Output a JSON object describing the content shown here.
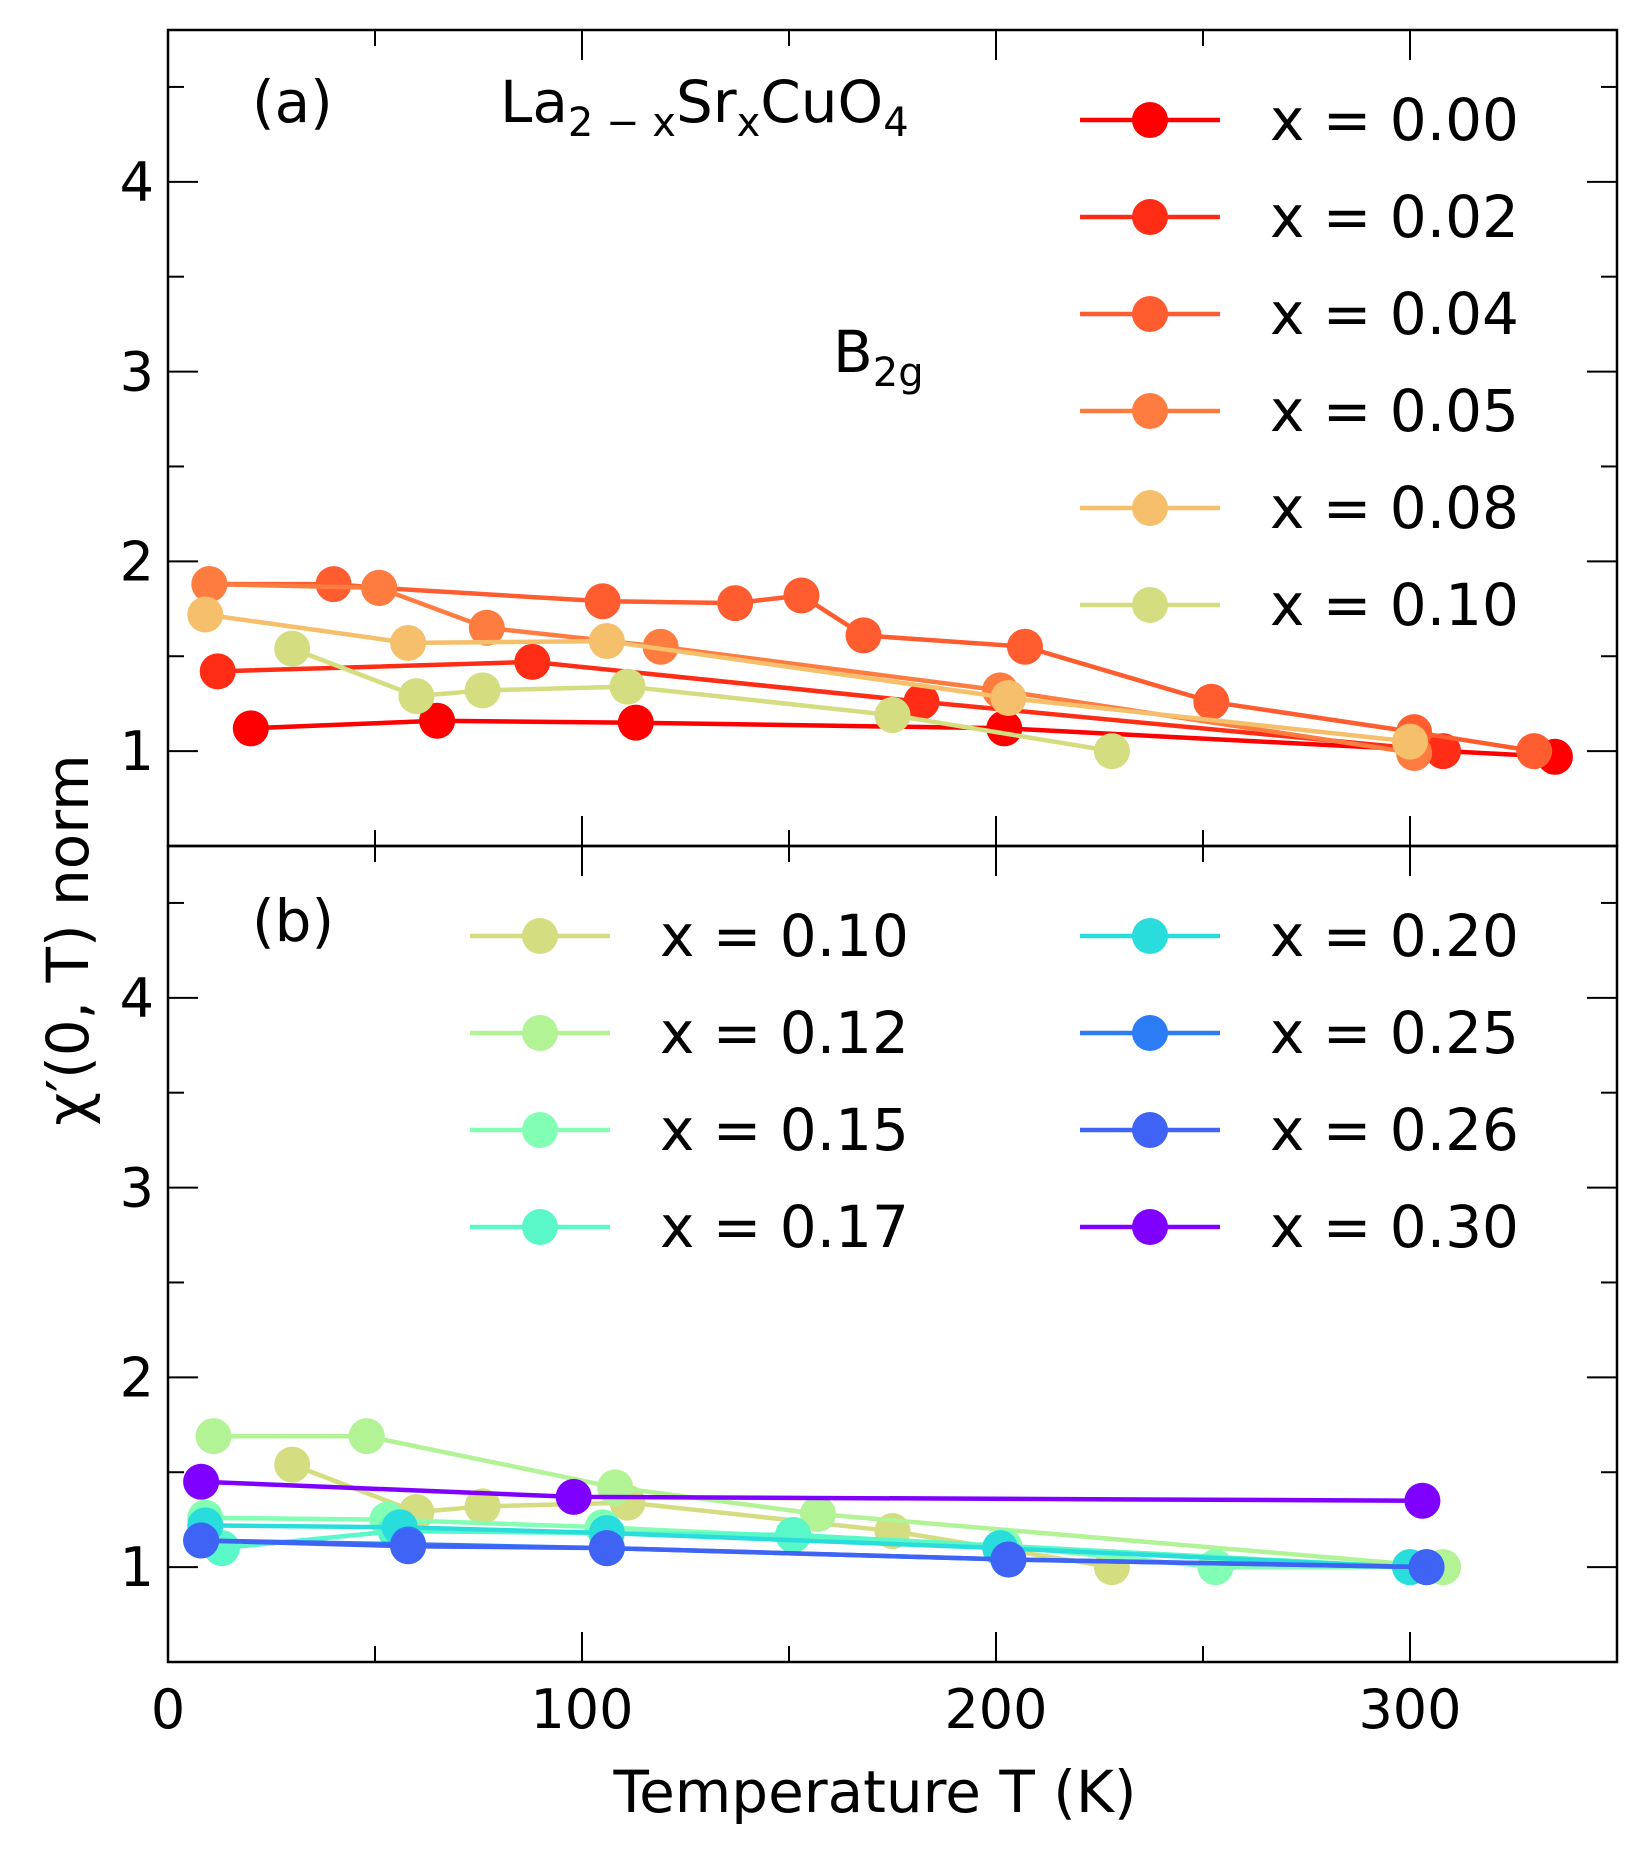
{
  "figure": {
    "ylabel": "χ′(0, T) norm",
    "xlabel": "Temperature T (K)"
  },
  "chart_data": [
    {
      "type": "line",
      "panel": "(a)",
      "title": "La2−xSrxCuO4",
      "formula": {
        "base": "La",
        "sub1": "2 − x",
        "mid": "Sr",
        "sub2": "x",
        "tail": "CuO",
        "sub3": "4"
      },
      "annotation": {
        "base": "B",
        "sub": "2g"
      },
      "xlim": [
        0,
        350
      ],
      "ylim": [
        0.5,
        4.8
      ],
      "xticks": [
        0,
        100,
        200,
        300
      ],
      "yticks": [
        1,
        2,
        3,
        4
      ],
      "legend_position": "top-right",
      "series": [
        {
          "name": "x = 0.00",
          "color": "#ff0000",
          "x": [
            20,
            65,
            113,
            202,
            335
          ],
          "y": [
            1.12,
            1.16,
            1.15,
            1.12,
            0.97
          ]
        },
        {
          "name": "x = 0.02",
          "color": "#ff2d16",
          "x": [
            12,
            88,
            182,
            308
          ],
          "y": [
            1.42,
            1.47,
            1.26,
            1.0
          ]
        },
        {
          "name": "x = 0.04",
          "color": "#ff5d30",
          "x": [
            10,
            40,
            51,
            105,
            137,
            153,
            168,
            207,
            252,
            301,
            330
          ],
          "y": [
            1.88,
            1.88,
            1.86,
            1.79,
            1.78,
            1.82,
            1.61,
            1.55,
            1.26,
            1.1,
            1.0
          ]
        },
        {
          "name": "x = 0.05",
          "color": "#ff7c41",
          "x": [
            10,
            51,
            77,
            119,
            201,
            301
          ],
          "y": [
            1.88,
            1.86,
            1.65,
            1.55,
            1.32,
            0.99
          ]
        },
        {
          "name": "x = 0.08",
          "color": "#f5bf6b",
          "x": [
            9,
            58,
            106,
            203,
            300
          ],
          "y": [
            1.72,
            1.57,
            1.58,
            1.28,
            1.05
          ]
        },
        {
          "name": "x = 0.10",
          "color": "#d4dd80",
          "x": [
            30,
            60,
            76,
            111,
            175,
            228
          ],
          "y": [
            1.54,
            1.29,
            1.32,
            1.34,
            1.19,
            1.0
          ]
        }
      ]
    },
    {
      "type": "line",
      "panel": "(b)",
      "xlim": [
        0,
        350
      ],
      "ylim": [
        0.5,
        4.8
      ],
      "xticks": [
        0,
        100,
        200,
        300
      ],
      "yticks": [
        1,
        2,
        3,
        4
      ],
      "legend_position": "top",
      "series": [
        {
          "name": "x = 0.10",
          "color": "#d4dd80",
          "x": [
            30,
            60,
            76,
            111,
            175,
            228
          ],
          "y": [
            1.54,
            1.29,
            1.32,
            1.34,
            1.19,
            1.0
          ]
        },
        {
          "name": "x = 0.12",
          "color": "#b2f396",
          "x": [
            11,
            48,
            108,
            157,
            308
          ],
          "y": [
            1.69,
            1.69,
            1.42,
            1.28,
            1.0
          ]
        },
        {
          "name": "x = 0.15",
          "color": "#82ffb4",
          "x": [
            9,
            53,
            105,
            202,
            253,
            300
          ],
          "y": [
            1.26,
            1.25,
            1.21,
            1.11,
            1.0,
            1.0
          ]
        },
        {
          "name": "x = 0.17",
          "color": "#5af7c8",
          "x": [
            13,
            55,
            151,
            300
          ],
          "y": [
            1.1,
            1.19,
            1.17,
            1.0
          ]
        },
        {
          "name": "x = 0.20",
          "color": "#2adddd",
          "x": [
            9,
            56,
            106,
            201,
            300
          ],
          "y": [
            1.22,
            1.21,
            1.18,
            1.1,
            1.0
          ]
        },
        {
          "name": "x = 0.25",
          "color": "#2c7cf6",
          "x": [
            8,
            58,
            106,
            203,
            304
          ],
          "y": [
            1.14,
            1.12,
            1.1,
            1.04,
            1.0
          ]
        },
        {
          "name": "x = 0.26",
          "color": "#3f63f4",
          "x": [
            8,
            58,
            106,
            203,
            304
          ],
          "y": [
            1.14,
            1.11,
            1.1,
            1.04,
            1.0
          ]
        },
        {
          "name": "x = 0.30",
          "color": "#8000ff",
          "x": [
            8,
            98,
            303
          ],
          "y": [
            1.45,
            1.37,
            1.35
          ]
        }
      ]
    }
  ]
}
